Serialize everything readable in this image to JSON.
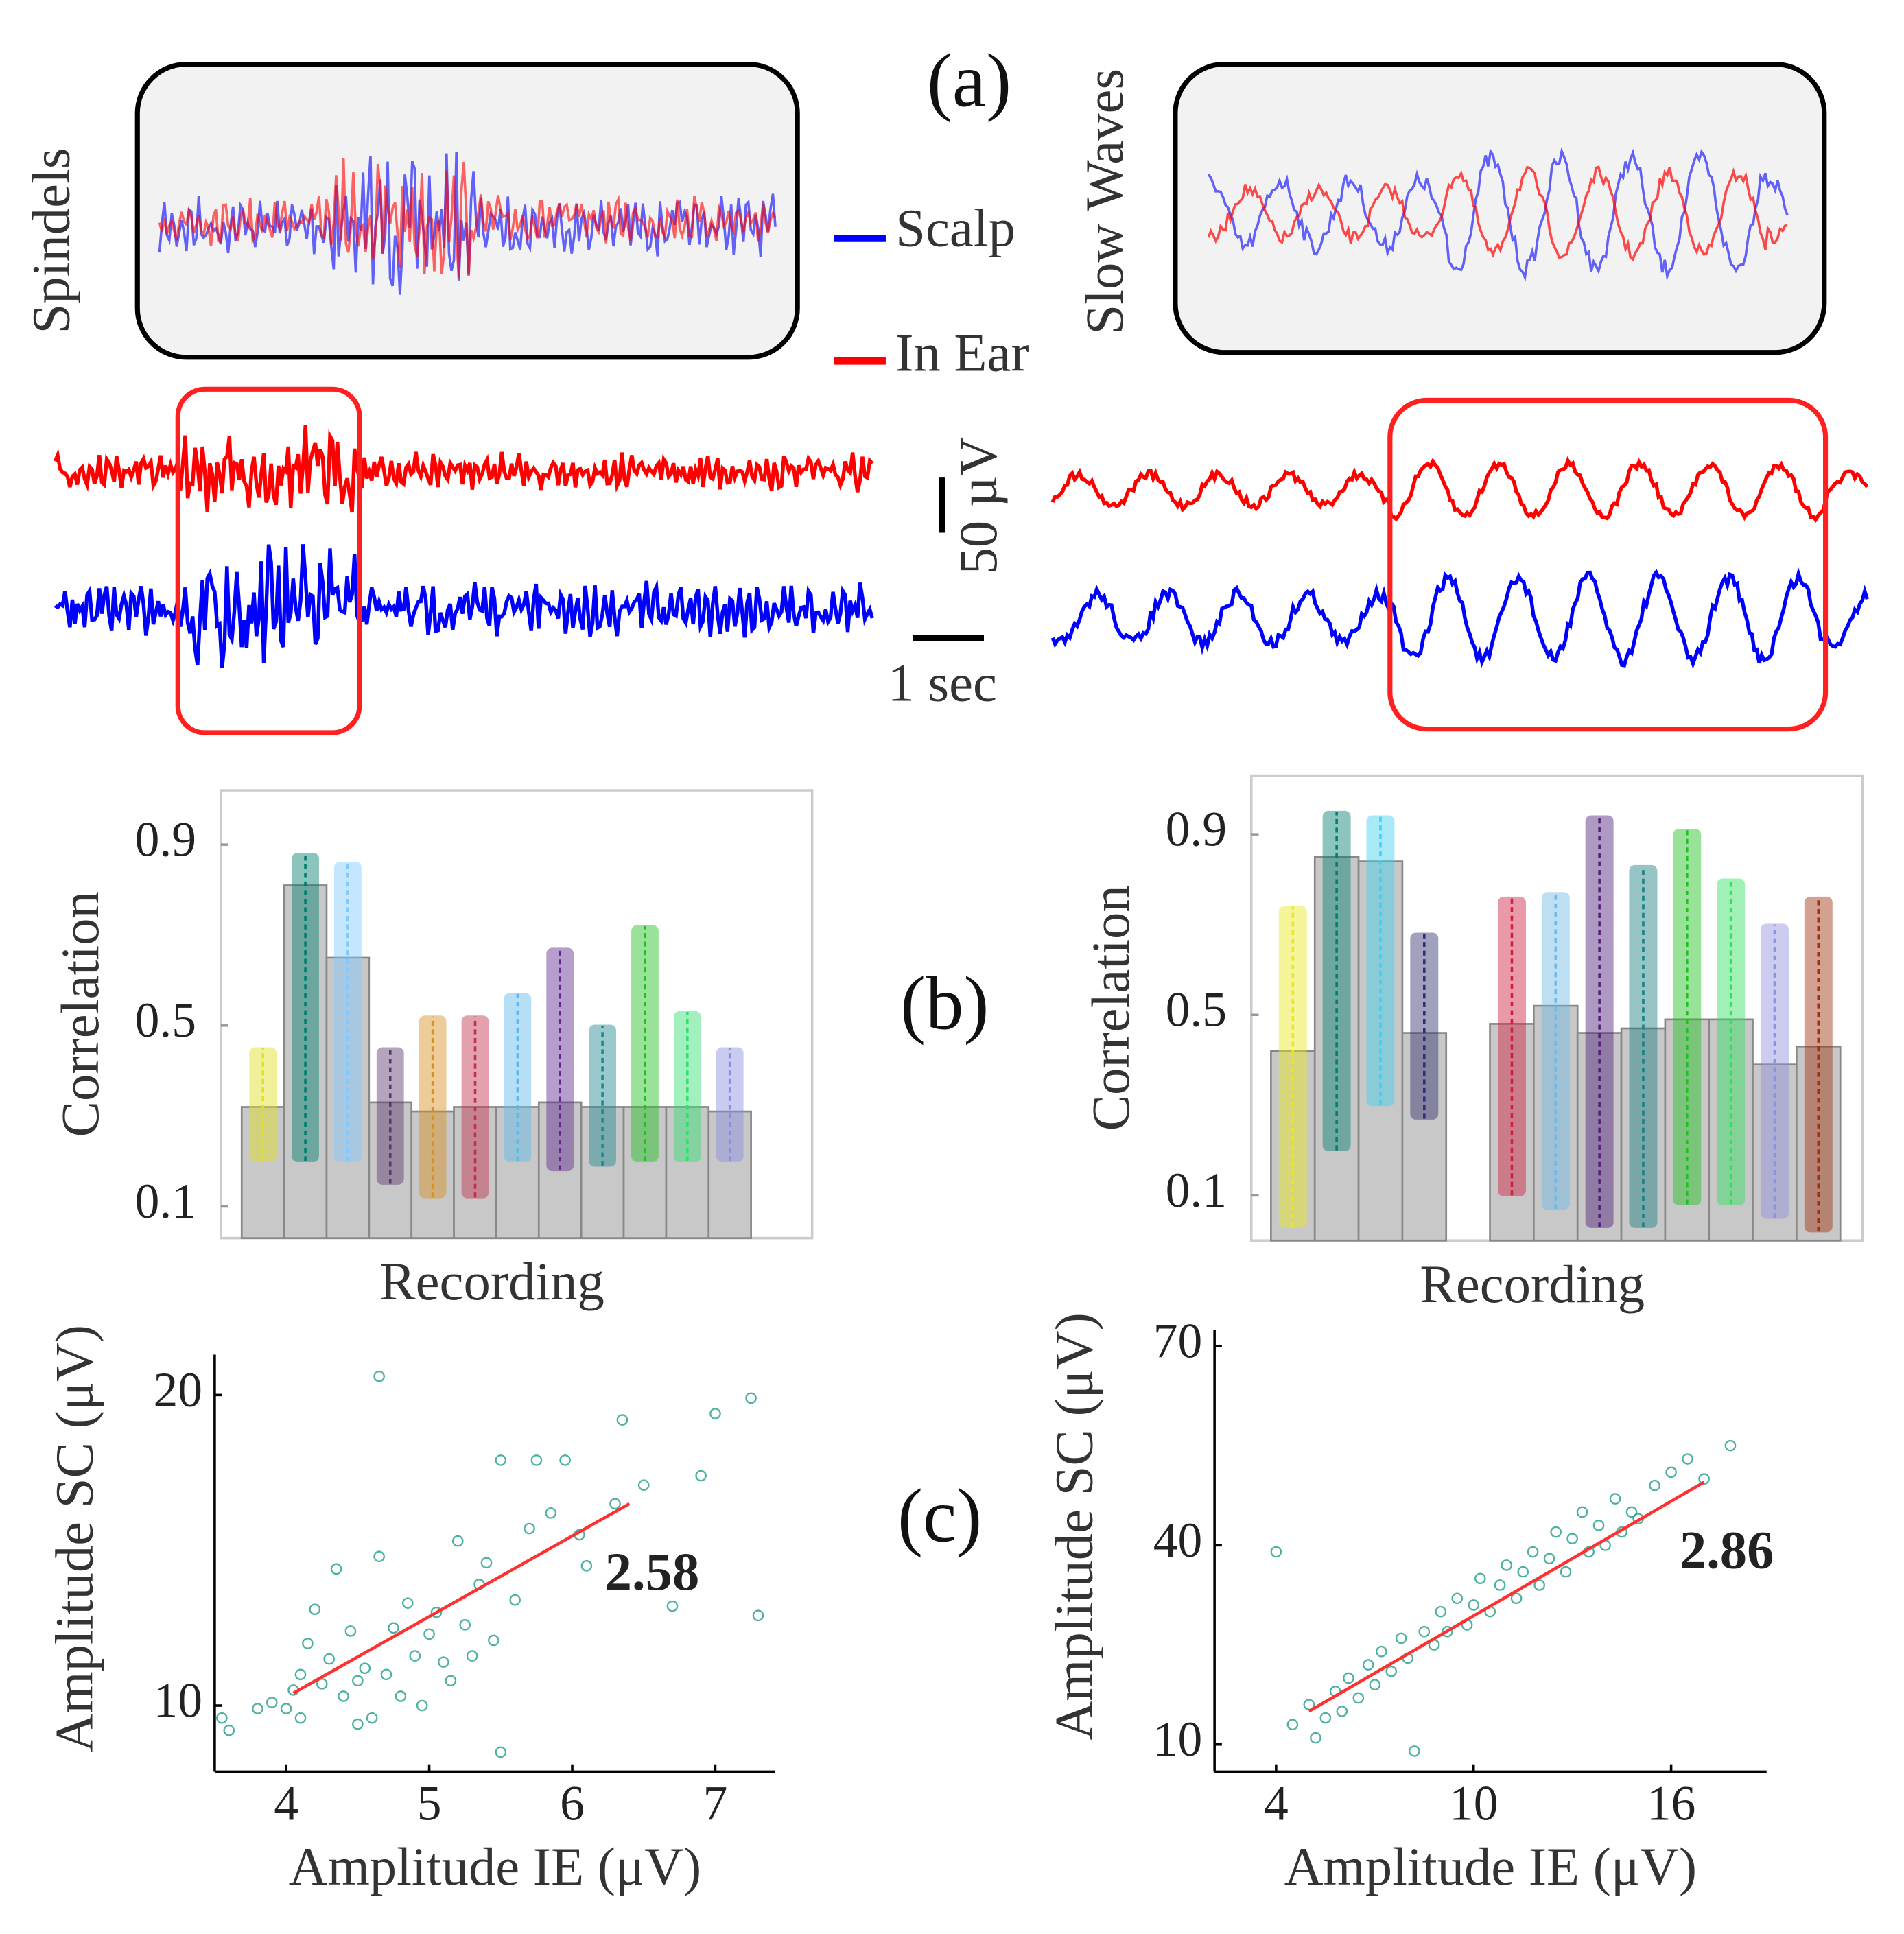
{
  "panel_labels": [
    "(a)",
    "(b)",
    "(c)"
  ],
  "waves": {
    "left_label": "Spindels",
    "right_label": "Slow Waves",
    "legend": [
      {
        "name": "Scalp",
        "color": "#0000ff"
      },
      {
        "name": "In Ear",
        "color": "#ff0000"
      }
    ],
    "scale_amplitude": "50 µV",
    "scale_time": "1 sec"
  },
  "chart_data": [
    {
      "type": "bar",
      "ylabel": "Correlation",
      "xlabel": "Recording",
      "values": [
        0.32,
        0.81,
        0.65,
        0.33,
        0.31,
        0.32,
        0.32,
        0.33,
        0.32,
        0.32,
        0.32,
        0.31
      ],
      "ranges": [
        [
          0.2,
          0.45
        ],
        [
          0.2,
          0.88
        ],
        [
          0.2,
          0.86
        ],
        [
          0.15,
          0.45
        ],
        [
          0.12,
          0.52
        ],
        [
          0.12,
          0.52
        ],
        [
          0.2,
          0.57
        ],
        [
          0.18,
          0.67
        ],
        [
          0.19,
          0.5
        ],
        [
          0.2,
          0.72
        ],
        [
          0.2,
          0.53
        ],
        [
          0.2,
          0.45
        ]
      ],
      "colors": [
        "#e0e020",
        "#007d6e",
        "#80c8ff",
        "#5a3a6e",
        "#d89020",
        "#c0304a",
        "#60b8e8",
        "#602890",
        "#208890",
        "#20c020",
        "#30e070",
        "#8890e0"
      ],
      "bar_color": "#c8c8c8",
      "ylim": [
        0.03,
        1.02
      ],
      "yticks": [
        0.1,
        0.5,
        0.9
      ]
    },
    {
      "type": "bar",
      "ylabel": "Correlation",
      "xlabel": "Recording",
      "values": [
        0.42,
        0.85,
        0.84,
        0.46,
        null,
        0.48,
        0.52,
        0.46,
        0.47,
        0.49,
        0.49,
        0.39,
        0.43
      ],
      "ranges": [
        [
          0.03,
          0.74
        ],
        [
          0.2,
          0.95
        ],
        [
          0.3,
          0.94
        ],
        [
          0.27,
          0.68
        ],
        null,
        [
          0.1,
          0.76
        ],
        [
          0.07,
          0.77
        ],
        [
          0.03,
          0.94
        ],
        [
          0.03,
          0.83
        ],
        [
          0.08,
          0.91
        ],
        [
          0.08,
          0.8
        ],
        [
          0.05,
          0.7
        ],
        [
          0.02,
          0.76
        ]
      ],
      "colors": [
        "#e8e820",
        "#008070",
        "#40d0f0",
        "#303070",
        null,
        "#d02040",
        "#70b8e8",
        "#50207a",
        "#1a8080",
        "#20c020",
        "#30e060",
        "#9090e0",
        "#a03010"
      ],
      "bar_color": "#c8c8c8",
      "ylim": [
        0,
        1.03
      ],
      "yticks": [
        0.1,
        0.5,
        0.9
      ]
    },
    {
      "type": "scatter",
      "xlabel": "Amplitude IE (μV)",
      "ylabel": "Amplitude SC (μV)",
      "annotation": "2.58",
      "color": "#1f9e89",
      "x": [
        3.55,
        3.6,
        3.8,
        3.9,
        4.0,
        4.05,
        4.1,
        4.1,
        4.15,
        4.2,
        4.25,
        4.3,
        4.35,
        4.4,
        4.45,
        4.5,
        4.5,
        4.55,
        4.6,
        4.65,
        4.65,
        4.7,
        4.75,
        4.8,
        4.85,
        4.9,
        4.95,
        5.0,
        5.05,
        5.1,
        5.15,
        5.2,
        5.25,
        5.3,
        5.35,
        5.4,
        5.45,
        5.5,
        5.5,
        5.6,
        5.7,
        5.75,
        5.85,
        5.95,
        6.05,
        6.1,
        6.3,
        6.35,
        6.5,
        6.7,
        6.9,
        7.0,
        7.25,
        7.3
      ],
      "y": [
        9.6,
        9.2,
        9.9,
        10.1,
        9.9,
        10.5,
        9.6,
        11.0,
        12.0,
        13.1,
        10.7,
        11.5,
        14.4,
        10.3,
        12.4,
        9.4,
        10.8,
        11.2,
        9.6,
        14.8,
        20.6,
        11.0,
        12.5,
        10.3,
        13.3,
        11.6,
        10.0,
        12.3,
        13.0,
        11.4,
        10.8,
        15.3,
        12.6,
        11.6,
        13.9,
        14.6,
        12.1,
        8.5,
        17.9,
        13.4,
        15.7,
        17.9,
        16.2,
        17.9,
        15.5,
        14.5,
        16.5,
        19.2,
        17.1,
        13.2,
        17.4,
        19.4,
        19.9,
        12.9
      ],
      "fit": {
        "color": "#ff3030",
        "x": [
          4.05,
          6.4
        ],
        "y": [
          10.4,
          16.5
        ]
      },
      "xlim": [
        3.5,
        7.42
      ],
      "ylim": [
        7.87,
        21.3
      ],
      "xticks": [
        4,
        5,
        6,
        7
      ],
      "yticks": [
        10,
        20
      ]
    },
    {
      "type": "scatter",
      "xlabel": "Amplitude IE (μV)",
      "ylabel": "Amplitude SC (μV)",
      "annotation": "2.86",
      "color": "#1f9e89",
      "x": [
        4,
        4.5,
        5,
        5.2,
        5.5,
        5.8,
        6,
        6.2,
        6.5,
        6.8,
        7,
        7.2,
        7.5,
        7.8,
        8,
        8.2,
        8.5,
        8.8,
        9,
        9.2,
        9.5,
        9.8,
        10,
        10.2,
        10.5,
        10.8,
        11,
        11.3,
        11.5,
        11.8,
        12,
        12.3,
        12.5,
        12.8,
        13,
        13.3,
        13.5,
        13.8,
        14,
        14.3,
        14.5,
        14.8,
        15,
        15.5,
        16,
        16.5,
        17,
        17.8
      ],
      "y": [
        39,
        13,
        16,
        11,
        14,
        18,
        15,
        20,
        17,
        22,
        19,
        24,
        21,
        26,
        23,
        9,
        27,
        25,
        30,
        27,
        32,
        28,
        31,
        35,
        30,
        34,
        37,
        32,
        36,
        39,
        34,
        38,
        42,
        36,
        41,
        45,
        39,
        43,
        40,
        47,
        42,
        45,
        44,
        49,
        51,
        53,
        50,
        55
      ],
      "fit": {
        "color": "#ff3030",
        "x": [
          5,
          17
        ],
        "y": [
          15,
          49.5
        ]
      },
      "xlim": [
        2.13,
        18.9
      ],
      "ylim": [
        5.9,
        72.4
      ],
      "xticks": [
        4,
        10,
        16
      ],
      "yticks": [
        10,
        40,
        70
      ]
    }
  ]
}
